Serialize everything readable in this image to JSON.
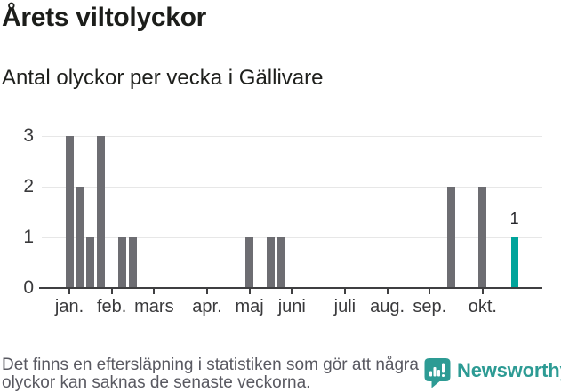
{
  "header": {
    "title": "Årets viltolyckor",
    "subtitle": "Antal olyckor per vecka i Gällivare"
  },
  "chart_data": {
    "type": "bar",
    "title": "Årets viltolyckor",
    "subtitle": "Antal olyckor per vecka i Gällivare",
    "x_unit": "week-of-year",
    "ylim": [
      0,
      3
    ],
    "yticks": [
      0,
      1,
      2,
      3
    ],
    "grid": "horizontal",
    "bar_color": "#6d6d72",
    "highlight_color": "#00a49b",
    "points": [
      {
        "week": 3,
        "value": 3
      },
      {
        "week": 4,
        "value": 2
      },
      {
        "week": 5,
        "value": 1
      },
      {
        "week": 6,
        "value": 3
      },
      {
        "week": 8,
        "value": 1
      },
      {
        "week": 9,
        "value": 1
      },
      {
        "week": 20,
        "value": 1
      },
      {
        "week": 22,
        "value": 1
      },
      {
        "week": 23,
        "value": 1
      },
      {
        "week": 39,
        "value": 2
      },
      {
        "week": 42,
        "value": 2
      },
      {
        "week": 45,
        "value": 1,
        "highlight": true
      }
    ],
    "annotations": [
      {
        "week": 45,
        "text": "1"
      }
    ],
    "xticks": [
      {
        "label": "jan.",
        "week": 3
      },
      {
        "label": "feb.",
        "week": 7
      },
      {
        "label": "mars",
        "week": 11
      },
      {
        "label": "apr.",
        "week": 16
      },
      {
        "label": "maj",
        "week": 20
      },
      {
        "label": "juni",
        "week": 24
      },
      {
        "label": "juli",
        "week": 29
      },
      {
        "label": "aug.",
        "week": 33
      },
      {
        "label": "sep.",
        "week": 37
      },
      {
        "label": "okt.",
        "week": 42
      }
    ]
  },
  "footer": {
    "note_line1": "Det finns en eftersläpning i statistiken som gör att några",
    "note_line2": "olyckor kan saknas de senaste veckorna.",
    "brand": "Newsworthy",
    "brand_color": "#2d9b94"
  }
}
